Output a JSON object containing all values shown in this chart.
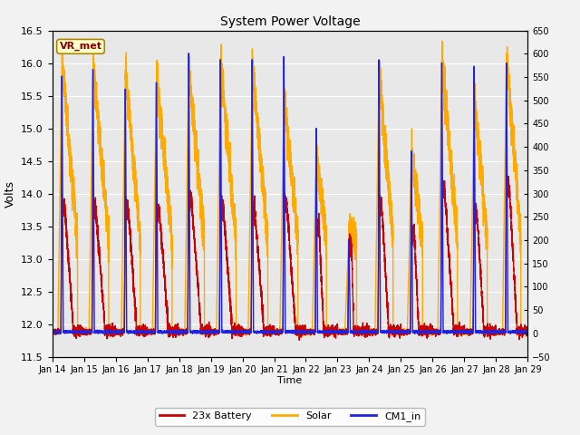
{
  "title": "System Power Voltage",
  "xlabel": "Time",
  "ylabel": "Volts",
  "ylim_left": [
    11.5,
    16.5
  ],
  "ylim_right": [
    -50,
    650
  ],
  "yticks_left": [
    11.5,
    12.0,
    12.5,
    13.0,
    13.5,
    14.0,
    14.5,
    15.0,
    15.5,
    16.0,
    16.5
  ],
  "yticks_right": [
    -50,
    0,
    50,
    100,
    150,
    200,
    250,
    300,
    350,
    400,
    450,
    500,
    550,
    600,
    650
  ],
  "xtick_days": [
    14,
    15,
    16,
    17,
    18,
    19,
    20,
    21,
    22,
    23,
    24,
    25,
    26,
    27,
    28,
    29
  ],
  "colors": {
    "battery": "#cc0000",
    "solar": "#ffaa00",
    "cm1": "#2222dd"
  },
  "legend_labels": [
    "23x Battery",
    "Solar",
    "CM1_in"
  ],
  "vr_met_label": "VR_met",
  "vr_met_box_color": "#ffffcc",
  "vr_met_text_color": "#880000",
  "background_color": "#e8e8e8",
  "grid_color": "#ffffff",
  "line_width": 1.0,
  "figsize": [
    6.4,
    4.8
  ],
  "dpi": 100
}
